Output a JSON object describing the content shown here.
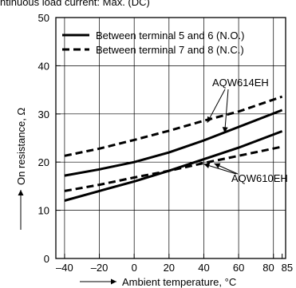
{
  "page_title": "ntinuous load current: Max. (DC)",
  "chart_data": {
    "type": "line",
    "xlabel": "Ambient temperature, °C",
    "ylabel": "On resistance, Ω",
    "xlim": [
      -45,
      87
    ],
    "ylim": [
      0,
      50
    ],
    "xticks": [
      -40,
      -20,
      0,
      20,
      40,
      60,
      80,
      85
    ],
    "xtick_labels": [
      "–40",
      "–20",
      "0",
      "20",
      "40",
      "60",
      "80",
      "85"
    ],
    "yticks": [
      0,
      10,
      20,
      30,
      40,
      50
    ],
    "grid": true,
    "legend": {
      "position": "top",
      "entries": [
        {
          "label": "Between terminal 5 and 6 (N.O.)",
          "style": "solid"
        },
        {
          "label": "Between terminal 7 and 8 (N.C.)",
          "style": "dashed"
        }
      ]
    },
    "series": [
      {
        "name": "Between terminal 5 and 6 (N.O.)",
        "group": "AQW614EH",
        "style": "solid",
        "x": [
          -40,
          -20,
          0,
          20,
          40,
          60,
          85
        ],
        "y": [
          17.2,
          18.5,
          20.0,
          22.0,
          24.5,
          27.3,
          30.8
        ]
      },
      {
        "name": "Between terminal 7 and 8 (N.C.)",
        "group": "AQW614EH",
        "style": "dashed",
        "x": [
          -40,
          -20,
          0,
          20,
          40,
          60,
          85
        ],
        "y": [
          21.3,
          22.8,
          24.6,
          26.5,
          28.6,
          30.5,
          33.6
        ]
      },
      {
        "name": "Between terminal 5 and 6 (N.O.)",
        "group": "AQW610EH",
        "style": "solid",
        "x": [
          -40,
          -20,
          0,
          20,
          40,
          60,
          85
        ],
        "y": [
          12.0,
          14.0,
          16.0,
          18.2,
          20.6,
          23.0,
          26.4
        ]
      },
      {
        "name": "Between terminal 7 and 8 (N.C.)",
        "group": "AQW610EH",
        "style": "dashed",
        "x": [
          -40,
          -20,
          0,
          20,
          40,
          60,
          85
        ],
        "y": [
          14.0,
          15.3,
          16.8,
          18.2,
          19.8,
          21.3,
          23.2
        ]
      }
    ],
    "annotations": [
      {
        "text": "AQW614EH"
      },
      {
        "text": "AQW610EH"
      }
    ],
    "colors": {
      "line": "#000000",
      "grid": "#000000",
      "background": "#ffffff"
    }
  }
}
